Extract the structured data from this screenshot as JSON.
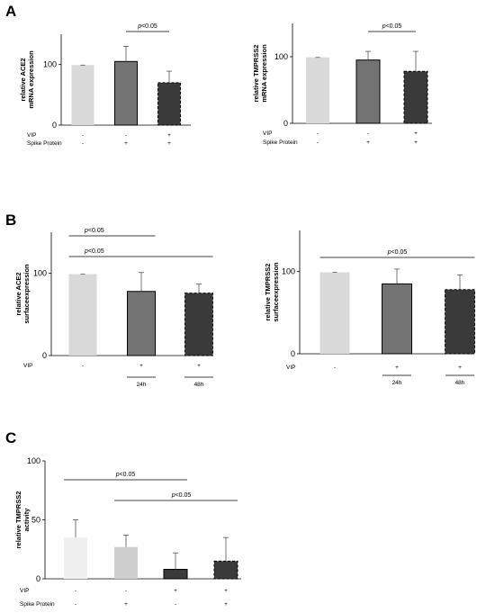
{
  "figure": {
    "panel_letters": [
      "A",
      "B",
      "C"
    ]
  },
  "chart_data": [
    {
      "id": "A_left",
      "panel": "A",
      "type": "bar",
      "ylabel": [
        "relative ACE2",
        "mRNA expression"
      ],
      "ylim": [
        0,
        150
      ],
      "yticks": [
        0,
        100
      ],
      "values": [
        99,
        105,
        70
      ],
      "errors": [
        0,
        25,
        19
      ],
      "colors": [
        "#d9d9d9",
        "#737373",
        "#3a3a3a"
      ],
      "dashed": [
        false,
        false,
        true
      ],
      "rows": [
        {
          "label": "VIP",
          "marks": [
            "-",
            "-",
            "+"
          ]
        },
        {
          "label": "Spike Protein",
          "marks": [
            "-",
            "+",
            "+"
          ]
        }
      ],
      "significance": [
        {
          "text": "p<0.05",
          "from": 1,
          "to": 2
        }
      ]
    },
    {
      "id": "A_right",
      "panel": "A",
      "type": "bar",
      "ylabel": [
        "relative TMPRSS2",
        "mRNA expression"
      ],
      "ylim": [
        0,
        150
      ],
      "yticks": [
        0,
        100
      ],
      "values": [
        99,
        95,
        78
      ],
      "errors": [
        0,
        13,
        30
      ],
      "colors": [
        "#d9d9d9",
        "#737373",
        "#3a3a3a"
      ],
      "dashed": [
        false,
        false,
        true
      ],
      "rows": [
        {
          "label": "VIP",
          "marks": [
            "-",
            "-",
            "+"
          ]
        },
        {
          "label": "Spike Protein",
          "marks": [
            "-",
            "+",
            "+"
          ]
        }
      ],
      "significance": [
        {
          "text": "p<0.05",
          "from": 1,
          "to": 2
        }
      ]
    },
    {
      "id": "B_left",
      "panel": "B",
      "type": "bar",
      "ylabel": [
        "relative ACE2",
        "surfaceexpression"
      ],
      "ylim": [
        0,
        150
      ],
      "yticks": [
        0,
        100
      ],
      "values": [
        99,
        78,
        76
      ],
      "errors": [
        0,
        23,
        11
      ],
      "colors": [
        "#d9d9d9",
        "#737373",
        "#3a3a3a"
      ],
      "dashed": [
        false,
        false,
        true
      ],
      "rows": [
        {
          "label": "VIP",
          "marks": [
            "-",
            "+",
            "+"
          ]
        }
      ],
      "sublabels": [
        "",
        "24h",
        "48h"
      ],
      "significance": [
        {
          "text": "p<0.05",
          "from": 0,
          "to": 1
        },
        {
          "text": "p<0.05",
          "from": 0,
          "to": 2
        }
      ]
    },
    {
      "id": "B_right",
      "panel": "B",
      "type": "bar",
      "ylabel": [
        "relative TMPRSS2",
        "surfaceexpression"
      ],
      "ylim": [
        0,
        150
      ],
      "yticks": [
        0,
        100
      ],
      "values": [
        99,
        85,
        78
      ],
      "errors": [
        0,
        18,
        18
      ],
      "colors": [
        "#d9d9d9",
        "#737373",
        "#3a3a3a"
      ],
      "dashed": [
        false,
        false,
        true
      ],
      "rows": [
        {
          "label": "VIP",
          "marks": [
            "-",
            "+",
            "+"
          ]
        }
      ],
      "sublabels": [
        "",
        "24h",
        "48h"
      ],
      "significance": [
        {
          "text": "p<0.05",
          "from": 0,
          "to": 2
        }
      ]
    },
    {
      "id": "C",
      "panel": "C",
      "type": "bar",
      "ylabel": [
        "relative TMPRSS2",
        "activity"
      ],
      "ylim": [
        0,
        100
      ],
      "yticks": [
        0,
        50,
        100
      ],
      "values": [
        35,
        27,
        8,
        15
      ],
      "errors": [
        15,
        10,
        14,
        20
      ],
      "colors": [
        "#f0f0f0",
        "#cfcfcf",
        "#3a3a3a",
        "#3a3a3a"
      ],
      "dashed": [
        false,
        false,
        false,
        true
      ],
      "rows": [
        {
          "label": "VIP",
          "marks": [
            "-",
            "-",
            "+",
            "+"
          ]
        },
        {
          "label": "Spike Protein",
          "marks": [
            "-",
            "+",
            "-",
            "+"
          ]
        }
      ],
      "significance": [
        {
          "text": "p<0.05",
          "from": 0,
          "to": 2
        },
        {
          "text": "p<0.05",
          "from": 1,
          "to": 3
        }
      ]
    }
  ]
}
